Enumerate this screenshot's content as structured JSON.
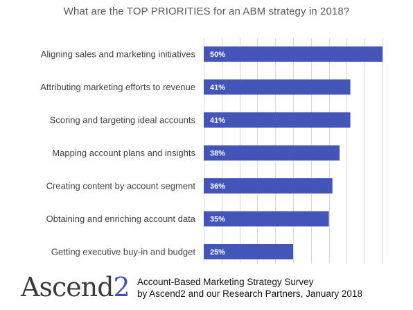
{
  "chart_data": {
    "type": "bar",
    "orientation": "horizontal",
    "title": "What are the TOP PRIORITIES for an ABM strategy in 2018?",
    "categories": [
      "Aligning sales and marketing initiatives",
      "Attributing marketing efforts to revenue",
      "Scoring and targeting ideal accounts",
      "Mapping account plans and insights",
      "Creating content by account segment",
      "Obtaining and enriching account data",
      "Getting executive buy-in and budget"
    ],
    "values": [
      50,
      41,
      41,
      38,
      36,
      35,
      25
    ],
    "value_labels": [
      "50%",
      "41%",
      "41%",
      "38%",
      "36%",
      "35%",
      "25%"
    ],
    "unit": "%",
    "xlim": [
      0,
      50
    ],
    "grid": "vertical",
    "legend": "none",
    "bar_color": "#4355b9"
  },
  "logo": {
    "text": "Ascend",
    "num": "2",
    "text_color": "#3b3b3b",
    "num_color": "#3f4fb3"
  },
  "source": {
    "line1": "Account-Based Marketing Strategy Survey",
    "line2": "by Ascend2 and our Research Partners, January 2018"
  }
}
